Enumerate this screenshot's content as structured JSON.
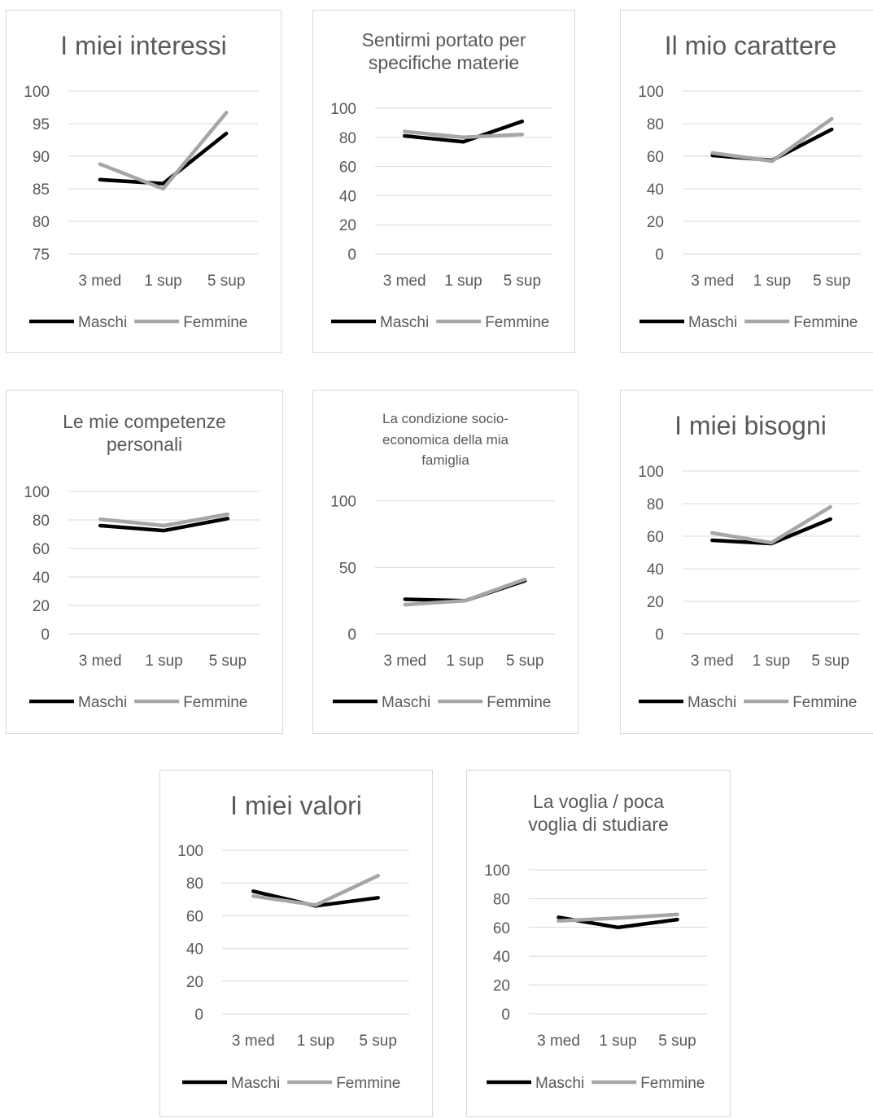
{
  "chart_data": [
    {
      "type": "line",
      "title": "I miei interessi",
      "categories": [
        "3 med",
        "1 sup",
        "5 sup"
      ],
      "ylim": [
        75,
        100
      ],
      "yticks": [
        75,
        80,
        85,
        90,
        95,
        100
      ],
      "grid": true,
      "legend": "bottom",
      "series": [
        {
          "name": "Maschi",
          "values": [
            86.4,
            85.8,
            93.5
          ],
          "color": "#000000"
        },
        {
          "name": "Femmine",
          "values": [
            88.8,
            85.0,
            96.7
          ],
          "color": "#a6a6a6"
        }
      ]
    },
    {
      "type": "line",
      "title": "Sentirmi portato per specifiche materie",
      "categories": [
        "3 med",
        "1 sup",
        "5 sup"
      ],
      "ylim": [
        0,
        100
      ],
      "yticks": [
        0,
        20,
        40,
        60,
        80,
        100
      ],
      "grid": true,
      "legend": "bottom",
      "series": [
        {
          "name": "Maschi",
          "values": [
            81,
            77,
            91
          ],
          "color": "#000000"
        },
        {
          "name": "Femmine",
          "values": [
            84,
            80,
            82
          ],
          "color": "#a6a6a6"
        }
      ]
    },
    {
      "type": "line",
      "title": "Il mio carattere",
      "categories": [
        "3 med",
        "1 sup",
        "5 sup"
      ],
      "ylim": [
        0,
        100
      ],
      "yticks": [
        0,
        20,
        40,
        60,
        80,
        100
      ],
      "grid": true,
      "legend": "bottom",
      "series": [
        {
          "name": "Maschi",
          "values": [
            60.5,
            57.5,
            76.5
          ],
          "color": "#000000"
        },
        {
          "name": "Femmine",
          "values": [
            62,
            57,
            83
          ],
          "color": "#a6a6a6"
        }
      ]
    },
    {
      "type": "line",
      "title": "Le mie competenze personali",
      "categories": [
        "3 med",
        "1 sup",
        "5 sup"
      ],
      "ylim": [
        0,
        100
      ],
      "yticks": [
        0,
        20,
        40,
        60,
        80,
        100
      ],
      "grid": true,
      "legend": "bottom",
      "series": [
        {
          "name": "Maschi",
          "values": [
            76,
            72.5,
            81
          ],
          "color": "#000000"
        },
        {
          "name": "Femmine",
          "values": [
            80.5,
            76,
            84
          ],
          "color": "#a6a6a6"
        }
      ]
    },
    {
      "type": "line",
      "title": "La condizione socio-economica della mia famiglia",
      "categories": [
        "3 med",
        "1 sup",
        "5 sup"
      ],
      "ylim": [
        0,
        120
      ],
      "yticks": [
        0,
        50,
        100
      ],
      "grid": true,
      "legend": "bottom",
      "series": [
        {
          "name": "Maschi",
          "values": [
            26,
            25,
            40
          ],
          "color": "#000000"
        },
        {
          "name": "Femmine",
          "values": [
            22,
            25,
            41
          ],
          "color": "#a6a6a6"
        }
      ]
    },
    {
      "type": "line",
      "title": "I miei bisogni",
      "categories": [
        "3 med",
        "1 sup",
        "5 sup"
      ],
      "ylim": [
        0,
        100
      ],
      "yticks": [
        0,
        20,
        40,
        60,
        80,
        100
      ],
      "grid": true,
      "legend": "bottom",
      "series": [
        {
          "name": "Maschi",
          "values": [
            57.5,
            55.5,
            70.5
          ],
          "color": "#000000"
        },
        {
          "name": "Femmine",
          "values": [
            62,
            56,
            78
          ],
          "color": "#a6a6a6"
        }
      ]
    },
    {
      "type": "line",
      "title": "I miei valori",
      "categories": [
        "3 med",
        "1 sup",
        "5 sup"
      ],
      "ylim": [
        0,
        100
      ],
      "yticks": [
        0,
        20,
        40,
        60,
        80,
        100
      ],
      "grid": true,
      "legend": "bottom",
      "series": [
        {
          "name": "Maschi",
          "values": [
            75,
            66,
            71
          ],
          "color": "#000000"
        },
        {
          "name": "Femmine",
          "values": [
            72,
            66.5,
            84.5
          ],
          "color": "#a6a6a6"
        }
      ]
    },
    {
      "type": "line",
      "title": "La voglia / poca voglia di studiare",
      "categories": [
        "3 med",
        "1 sup",
        "5 sup"
      ],
      "ylim": [
        0,
        100
      ],
      "yticks": [
        0,
        20,
        40,
        60,
        80,
        100
      ],
      "grid": true,
      "legend": "bottom",
      "series": [
        {
          "name": "Maschi",
          "values": [
            67,
            60,
            65.5
          ],
          "color": "#000000"
        },
        {
          "name": "Femmine",
          "values": [
            64.5,
            66.5,
            69
          ],
          "color": "#a6a6a6"
        }
      ]
    }
  ]
}
